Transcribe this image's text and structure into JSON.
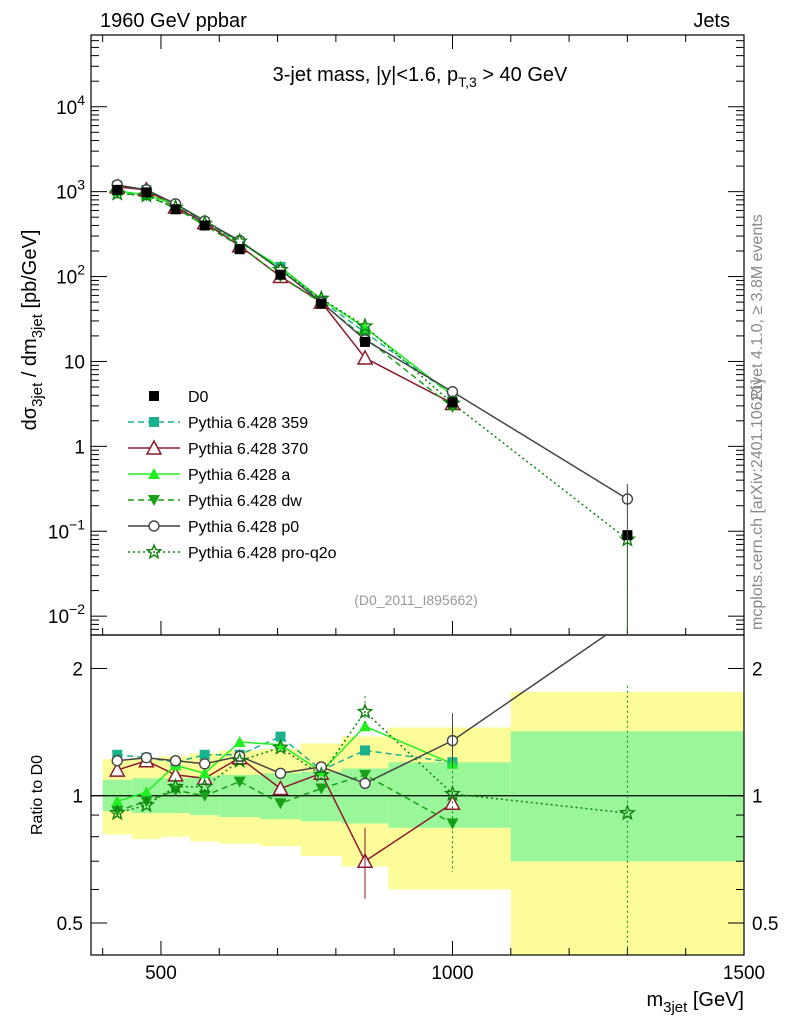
{
  "header": {
    "left": "1960 GeV ppbar",
    "right": "Jets"
  },
  "side_labels": {
    "rivet": "Rivet 4.1.0, ≥ 3.8M events",
    "mcplots": "mcplots.cern.ch [arXiv:2401.10621]"
  },
  "analysis_ref": "(D0_2011_I895662)",
  "colors": {
    "data": "#000000",
    "c359": "#1bb28e",
    "c370": "#8b1a2e",
    "ca": "#22ee22",
    "cdw": "#18a018",
    "cp0": "#444444",
    "cq2o": "#0e800e",
    "band_stat": "#99f799",
    "band_tot": "#fcfc99"
  },
  "chart_data": [
    {
      "type": "line",
      "panel": "main",
      "title_parts": {
        "base": "3-jet mass, |y|<1.6, p",
        "sub": "T,3",
        "tail": " > 40 GeV"
      },
      "ylabel": {
        "a": "dσ",
        "a_sub": "3jet",
        "b": " / dm",
        "b_sub": "3jet",
        "c": " [pb/GeV]"
      },
      "yscale": "log",
      "xlim": [
        380,
        1500
      ],
      "ylim": [
        0.006,
        70000
      ],
      "y_tick_labels": [
        {
          "v": 0.01,
          "base": "10",
          "exp": "−2"
        },
        {
          "v": 0.1,
          "base": "10",
          "exp": "−1"
        },
        {
          "v": 1,
          "base": "1",
          "exp": ""
        },
        {
          "v": 10,
          "base": "10",
          "exp": ""
        },
        {
          "v": 100,
          "base": "10",
          "exp": "2"
        },
        {
          "v": 1000,
          "base": "10",
          "exp": "3"
        },
        {
          "v": 10000,
          "base": "10",
          "exp": "4"
        }
      ],
      "x": [
        425,
        475,
        525,
        575,
        635,
        705,
        775,
        850,
        1000,
        1300
      ],
      "data": {
        "name": "D0",
        "values": [
          1050,
          980,
          620,
          400,
          210,
          105,
          48,
          17,
          3.3,
          0.09
        ]
      },
      "series": [
        {
          "key": "c359",
          "name": "Pythia 6.428 359",
          "marker": "square",
          "dash": "6,4",
          "values": [
            1180,
            1050,
            680,
            440,
            250,
            130,
            52,
            22,
            4.0,
            null
          ]
        },
        {
          "key": "c370",
          "name": "Pythia 6.428 370",
          "marker": "triangle-open",
          "dash": "",
          "values": [
            1140,
            1050,
            660,
            430,
            230,
            100,
            50,
            11,
            3.2,
            null
          ]
        },
        {
          "key": "ca",
          "name": "Pythia 6.428 a",
          "marker": "triangle",
          "dash": "",
          "values": [
            1020,
            920,
            710,
            460,
            255,
            130,
            54,
            25,
            4.0,
            null
          ]
        },
        {
          "key": "cdw",
          "name": "Pythia 6.428 dw",
          "marker": "triangle-down",
          "dash": "6,4",
          "values": [
            960,
            900,
            640,
            400,
            230,
            100,
            49,
            19,
            2.9,
            null
          ]
        },
        {
          "key": "cp0",
          "name": "Pythia 6.428 p0",
          "marker": "circle-open",
          "dash": "",
          "values": [
            1200,
            1050,
            720,
            450,
            265,
            120,
            50,
            18,
            4.4,
            0.24
          ]
        },
        {
          "key": "cq2o",
          "name": "Pythia 6.428 pro-q2o",
          "marker": "star-open",
          "dash": "2,3",
          "values": [
            950,
            900,
            650,
            420,
            260,
            120,
            55,
            26,
            3.2,
            0.08
          ]
        }
      ]
    },
    {
      "type": "line",
      "panel": "ratio",
      "ylabel": "Ratio to D0",
      "xlabel": {
        "a": "m",
        "a_sub": "3jet",
        "b": " [GeV]"
      },
      "yscale": "log",
      "ylim": [
        0.42,
        2.4
      ],
      "x_ticks": [
        500,
        1000,
        1500
      ],
      "y_ticks": [
        0.5,
        1,
        2
      ],
      "bands": {
        "edges": [
          400,
          450,
          500,
          550,
          600,
          670,
          740,
          810,
          890,
          1100,
          1500
        ],
        "stat_low": [
          0.92,
          0.91,
          0.91,
          0.9,
          0.89,
          0.88,
          0.87,
          0.86,
          0.84,
          0.7
        ],
        "stat_high": [
          1.09,
          1.1,
          1.1,
          1.11,
          1.12,
          1.13,
          1.14,
          1.16,
          1.2,
          1.42
        ],
        "tot_low": [
          0.81,
          0.79,
          0.8,
          0.78,
          0.77,
          0.76,
          0.72,
          0.68,
          0.6,
          0.38
        ],
        "tot_high": [
          1.22,
          1.23,
          1.24,
          1.26,
          1.28,
          1.29,
          1.33,
          1.38,
          1.45,
          1.76
        ]
      },
      "series": [
        {
          "key": "c359",
          "values": [
            1.25,
            1.23,
            1.2,
            1.25,
            1.25,
            1.38,
            1.15,
            1.28,
            1.2,
            null
          ]
        },
        {
          "key": "c370",
          "values": [
            1.15,
            1.21,
            1.12,
            1.1,
            1.23,
            1.04,
            1.13,
            0.7,
            0.96,
            null
          ]
        },
        {
          "key": "ca",
          "values": [
            0.97,
            1.02,
            1.18,
            1.13,
            1.34,
            1.32,
            1.14,
            1.46,
            1.19,
            null
          ]
        },
        {
          "key": "cdw",
          "values": [
            0.92,
            0.97,
            1.03,
            1.0,
            1.08,
            0.96,
            1.04,
            1.12,
            0.86,
            null
          ]
        },
        {
          "key": "cp0",
          "values": [
            1.21,
            1.23,
            1.21,
            1.19,
            1.24,
            1.13,
            1.17,
            1.07,
            1.35,
            2.6
          ]
        },
        {
          "key": "cq2o",
          "values": [
            0.91,
            0.95,
            1.05,
            1.05,
            1.21,
            1.3,
            1.12,
            1.58,
            1.01,
            0.91
          ]
        }
      ]
    }
  ]
}
